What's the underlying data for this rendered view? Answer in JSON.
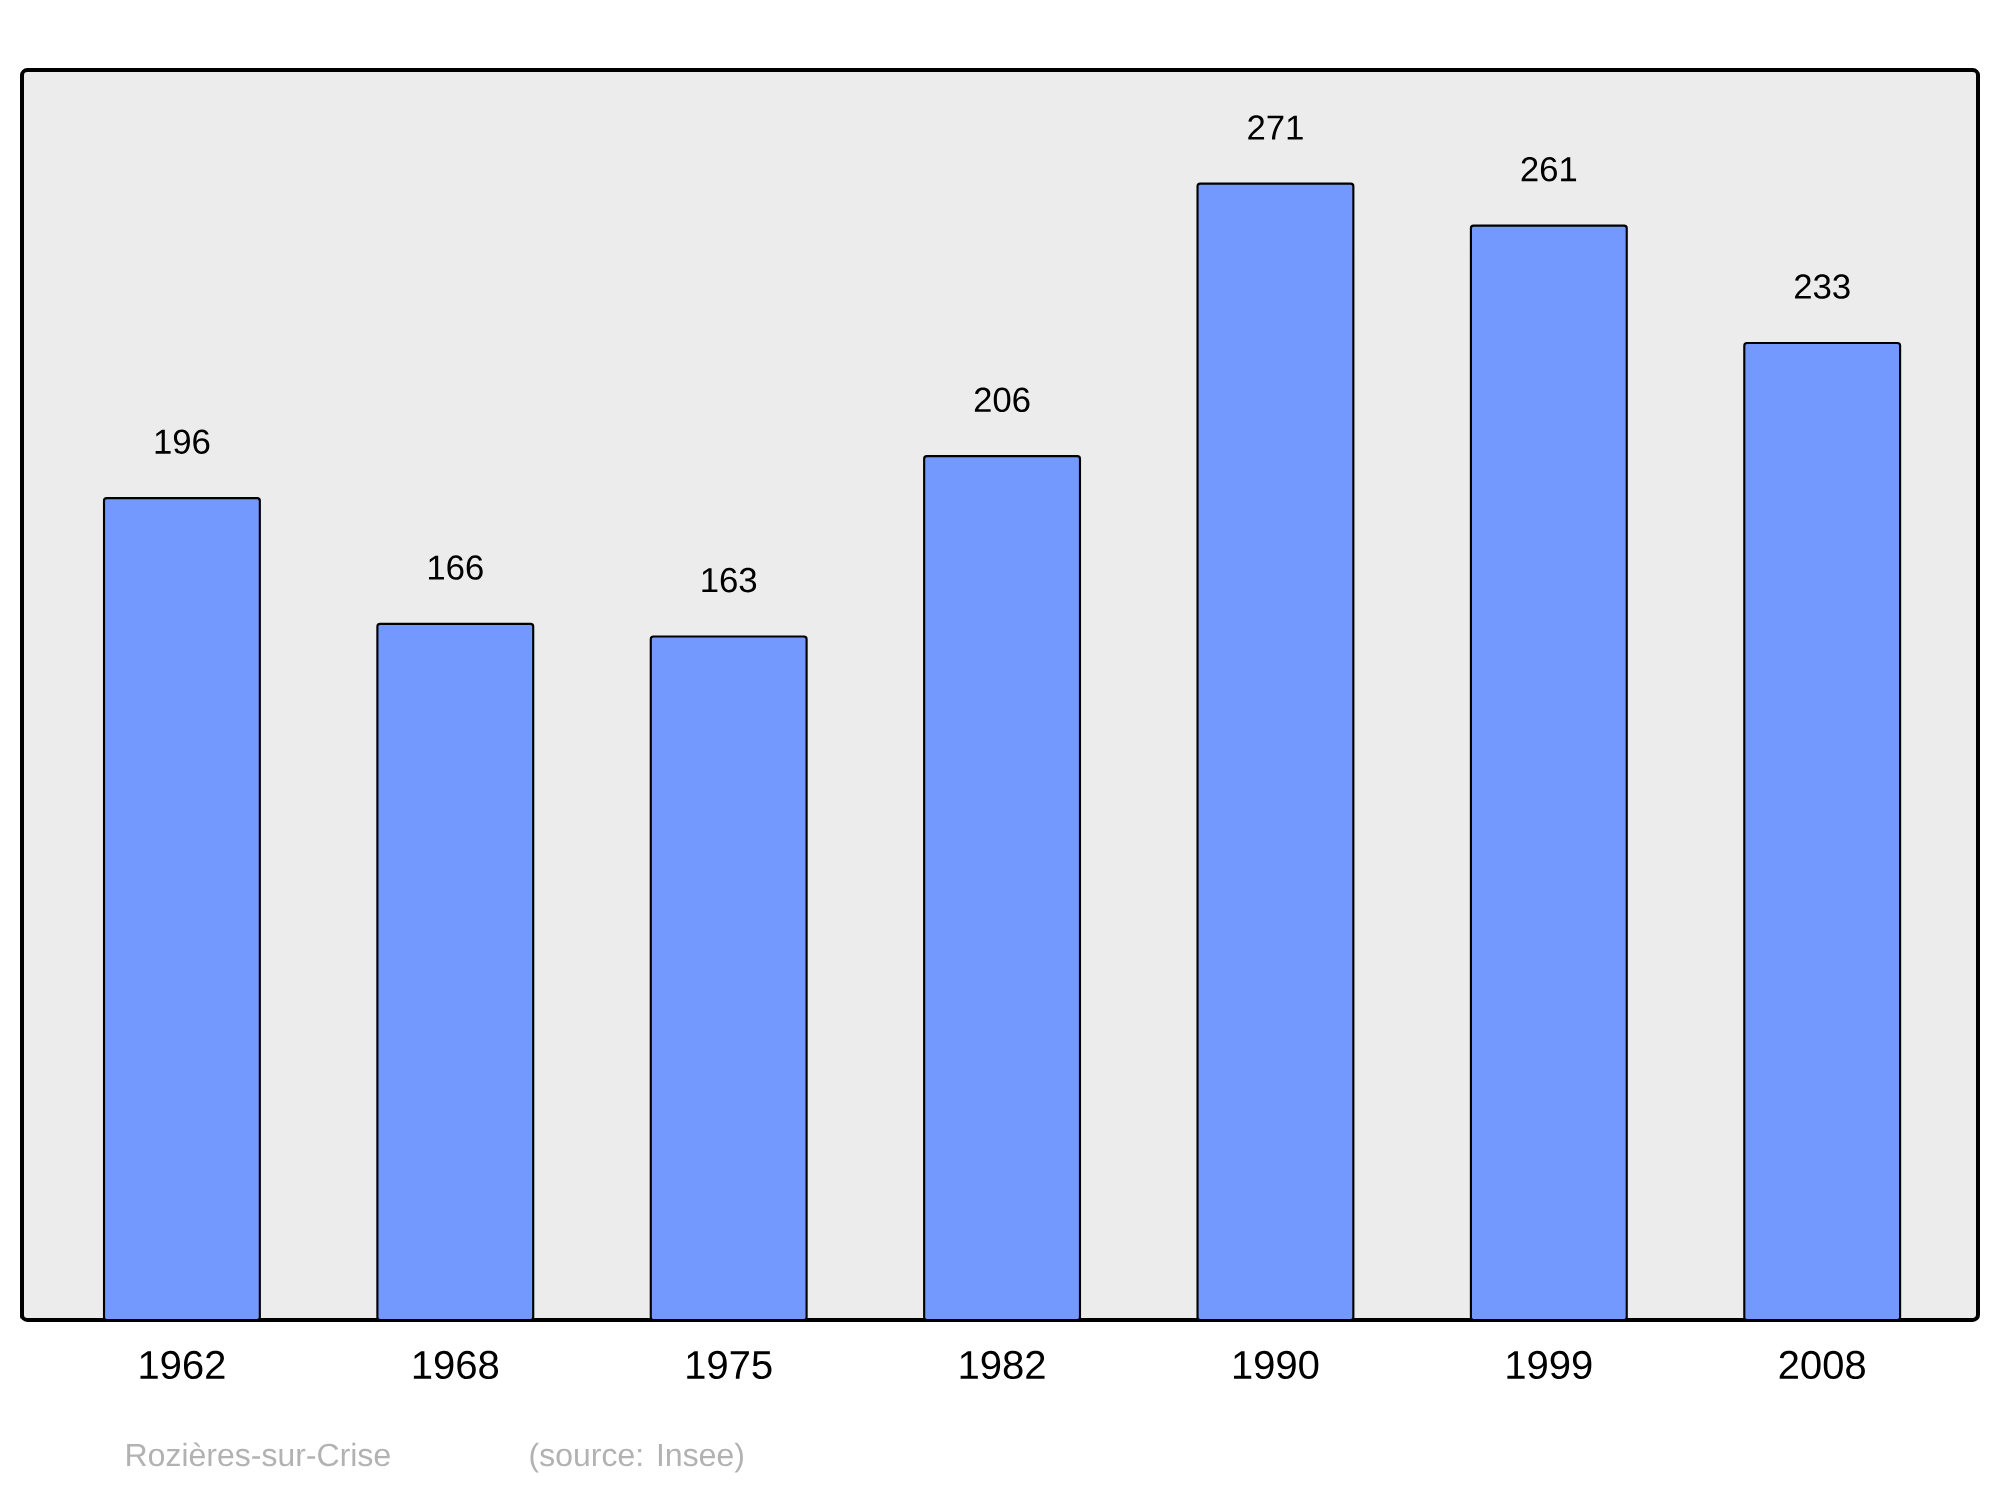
{
  "chart_data": {
    "type": "bar",
    "categories": [
      "1962",
      "1968",
      "1975",
      "1982",
      "1990",
      "1999",
      "2008"
    ],
    "values": [
      196,
      166,
      163,
      206,
      271,
      261,
      233
    ],
    "color": "#7399ff",
    "data_labels": true,
    "annotations": [
      "Rozières-sur-Crise",
      "(source: Insee)"
    ]
  }
}
